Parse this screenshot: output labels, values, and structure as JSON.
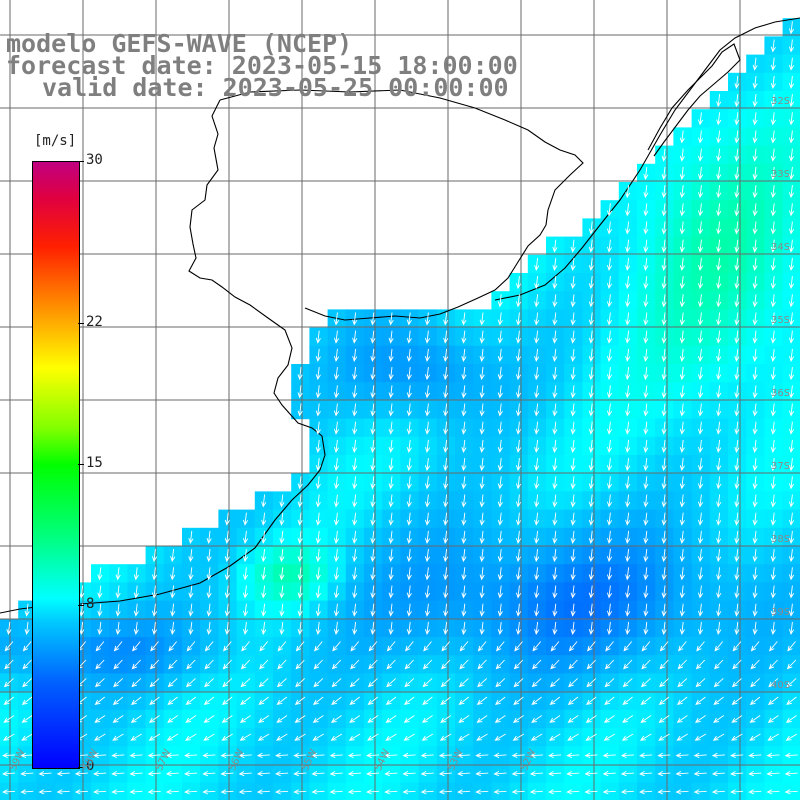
{
  "title": {
    "line1": "modelo GEFS-WAVE (NCEP)",
    "line2": "forecast date: 2023-05-15 18:00:00",
    "line3": "valid date: 2023-05-25 00:00:00"
  },
  "legend": {
    "unit": "[m/s]",
    "ticks": [
      {
        "label": "30",
        "value": 30
      },
      {
        "label": "22",
        "value": 22
      },
      {
        "label": "15",
        "value": 15
      },
      {
        "label": "8",
        "value": 8
      },
      {
        "label": "0",
        "value": 0
      }
    ],
    "range": [
      0,
      30
    ]
  },
  "axes": {
    "lat_labels": [
      "32S",
      "33S",
      "34S",
      "35S",
      "36S",
      "37S",
      "38S",
      "39S",
      "40S"
    ],
    "lon_labels": [
      "59W",
      "58W",
      "57W",
      "56W",
      "55W",
      "54W",
      "53W",
      "52W"
    ]
  },
  "colors": {
    "land": "#ffffff",
    "coast": "#000000",
    "grid": "#6a6a6a",
    "arrows": "#ffffff",
    "title": "#7f7f7f"
  }
}
